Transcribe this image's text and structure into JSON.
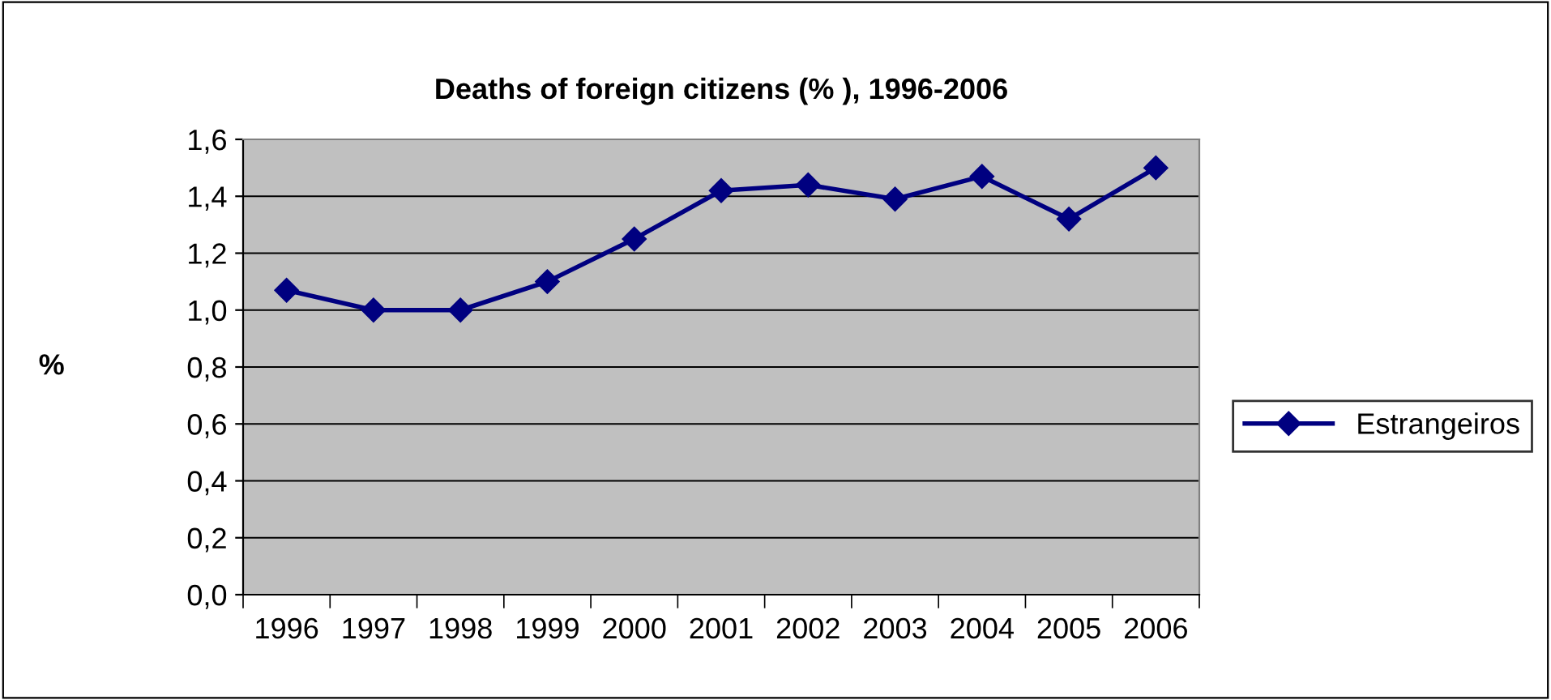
{
  "chart_data": {
    "type": "line",
    "title": "Deaths of foreign citizens (% ), 1996-2006",
    "ylabel": "%",
    "categories": [
      "1996",
      "1997",
      "1998",
      "1999",
      "2000",
      "2001",
      "2002",
      "2003",
      "2004",
      "2005",
      "2006"
    ],
    "series": [
      {
        "name": "Estrangeiros",
        "color": "#000080",
        "values": [
          1.07,
          1.0,
          1.0,
          1.1,
          1.25,
          1.42,
          1.44,
          1.39,
          1.47,
          1.32,
          1.5
        ]
      }
    ],
    "ylim": [
      0,
      1.6
    ],
    "yticks": [
      {
        "value": 0,
        "label": "0,0"
      },
      {
        "value": 0.2,
        "label": "0,2"
      },
      {
        "value": 0.4,
        "label": "0,4"
      },
      {
        "value": 0.6,
        "label": "0,6"
      },
      {
        "value": 0.8,
        "label": "0,8"
      },
      {
        "value": 1.0,
        "label": "1,0"
      },
      {
        "value": 1.2,
        "label": "1,2"
      },
      {
        "value": 1.4,
        "label": "1,4"
      },
      {
        "value": 1.6,
        "label": "1,6"
      }
    ],
    "grid": "y",
    "legend": "right",
    "marker": "diamond",
    "line_style": "solid"
  }
}
